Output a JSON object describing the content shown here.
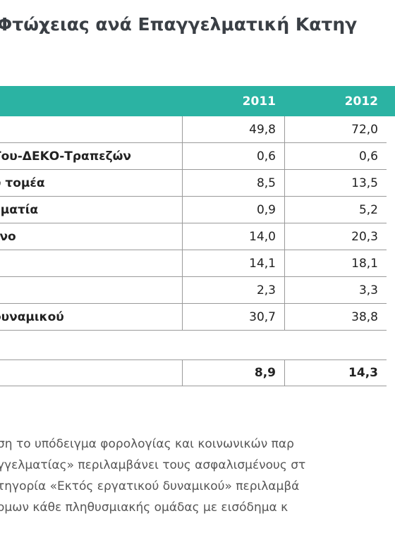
{
  "title": "Φτώχειας ανά Επαγγελματική Κατηγ",
  "table": {
    "header": [
      "",
      "2011",
      "2012"
    ],
    "rows": [
      [
        "",
        "49,8",
        "72,0"
      ],
      [
        "Του-ΔΕΚΟ-Τραπεζών",
        "0,6",
        "0,6"
      ],
      [
        "ύ τομέα",
        "8,5",
        "13,5"
      ],
      [
        "λματία",
        "0,9",
        "5,2"
      ],
      [
        "ενο",
        "14,0",
        "20,3"
      ],
      [
        "",
        "14,1",
        "18,1"
      ],
      [
        "",
        "2,3",
        "3,3"
      ],
      [
        "δυναμικού",
        "30,7",
        "38,8"
      ]
    ],
    "total": [
      "",
      "8,9",
      "14,3"
    ]
  },
  "footnotes": [
    "ση το υπόδειγμα φορολογίας και κοινωνικών παρ",
    "γγελματίας» περιλαμβάνει τους ασφαλισμένους στ",
    "τηγορία «Εκτός εργατικού δυναμικού» περιλαμβά",
    "ομων κάθε πληθυσμιακής ομάδας με εισόδημα κ"
  ]
}
